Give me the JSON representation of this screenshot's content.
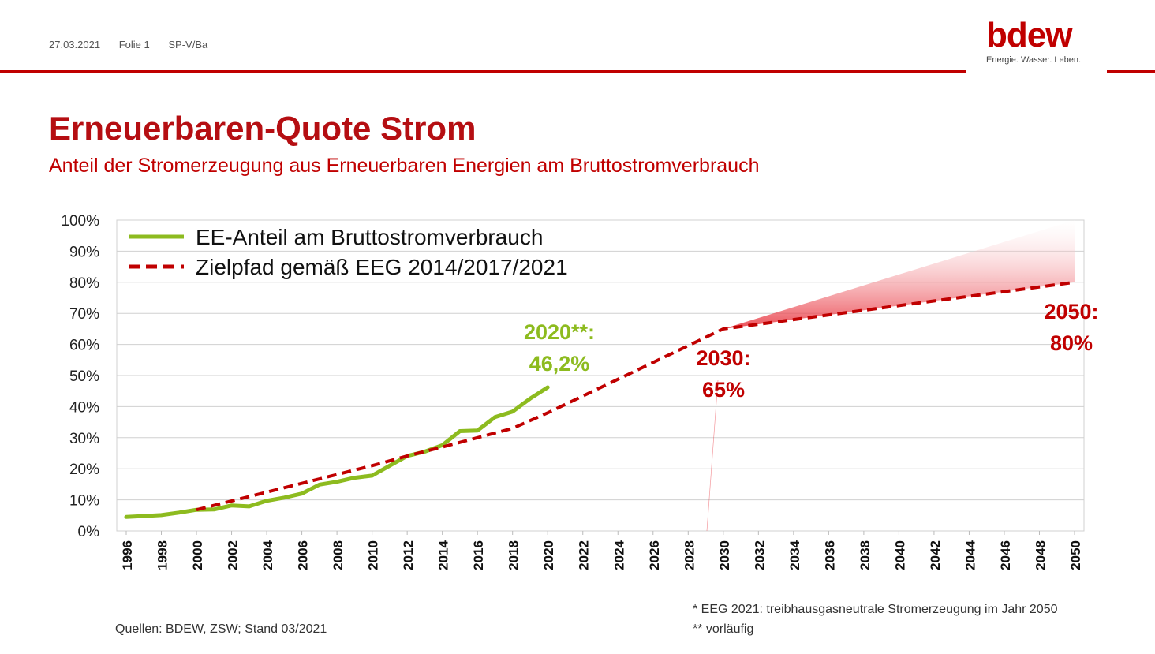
{
  "header": {
    "date": "27.03.2021",
    "slide": "Folie 1",
    "ref": "SP-V/Ba",
    "logo_word": "bdew",
    "logo_claim": "Energie. Wasser. Leben."
  },
  "title": "Erneuerbaren-Quote Strom",
  "subtitle": "Anteil der Stromerzeugung aus Erneuerbaren Energien am Bruttostromverbrauch",
  "chart_data": {
    "type": "line",
    "x_range": [
      1996,
      2050
    ],
    "ylim": [
      0,
      100
    ],
    "y_ticks": [
      "0%",
      "10%",
      "20%",
      "30%",
      "40%",
      "50%",
      "60%",
      "70%",
      "80%",
      "90%",
      "100%"
    ],
    "x_ticks": [
      "1996",
      "1998",
      "2000",
      "2002",
      "2004",
      "2006",
      "2008",
      "2010",
      "2012",
      "2014",
      "2016",
      "2018",
      "2020",
      "2022",
      "2024",
      "2026",
      "2028",
      "2030",
      "2032",
      "2034",
      "2036",
      "2038",
      "2040",
      "2042",
      "2044",
      "2046",
      "2048",
      "2050"
    ],
    "grid": true,
    "legend_position": "top-left",
    "series": [
      {
        "name": "EE-Anteil am Bruttostromverbrauch",
        "color": "#8dbb1f",
        "style": "solid",
        "x": [
          1996,
          1997,
          1998,
          1999,
          2000,
          2001,
          2002,
          2003,
          2004,
          2005,
          2006,
          2007,
          2008,
          2009,
          2010,
          2011,
          2012,
          2013,
          2014,
          2015,
          2016,
          2017,
          2018,
          2019,
          2020
        ],
        "y": [
          4.5,
          4.8,
          5.1,
          5.9,
          6.8,
          6.9,
          8.2,
          7.9,
          9.7,
          10.7,
          12.0,
          14.9,
          15.8,
          17.1,
          17.8,
          21.0,
          24.1,
          25.5,
          27.6,
          32.1,
          32.3,
          36.6,
          38.4,
          42.6,
          46.2
        ]
      },
      {
        "name": "Zielpfad gemäß EEG 2014/2017/2021",
        "color": "#c00000",
        "style": "dashed",
        "x": [
          2000,
          2010,
          2012,
          2014,
          2016,
          2018,
          2020,
          2030,
          2050
        ],
        "y": [
          6.8,
          21.0,
          24.1,
          27.0,
          30.0,
          33.0,
          38.0,
          65.0,
          80.0
        ]
      }
    ],
    "target_corridor": {
      "color": "#e8323c",
      "x": [
        2030,
        2050
      ],
      "upper": [
        65,
        100
      ],
      "lower": [
        65,
        80
      ]
    },
    "annotations": [
      {
        "line1": "2020**:",
        "line2": "46,2%",
        "color": "#8dbb1f"
      },
      {
        "line1": "2030:",
        "line2": "65%",
        "color": "#c00000"
      },
      {
        "line1": "2050:",
        "line2": "80%",
        "color": "#c00000"
      }
    ]
  },
  "footer": {
    "source": "Quellen: BDEW, ZSW; Stand 03/2021",
    "note1": "* EEG 2021: treibhausgasneutrale Stromerzeugung im Jahr 2050",
    "note2": "** vorläufig"
  }
}
